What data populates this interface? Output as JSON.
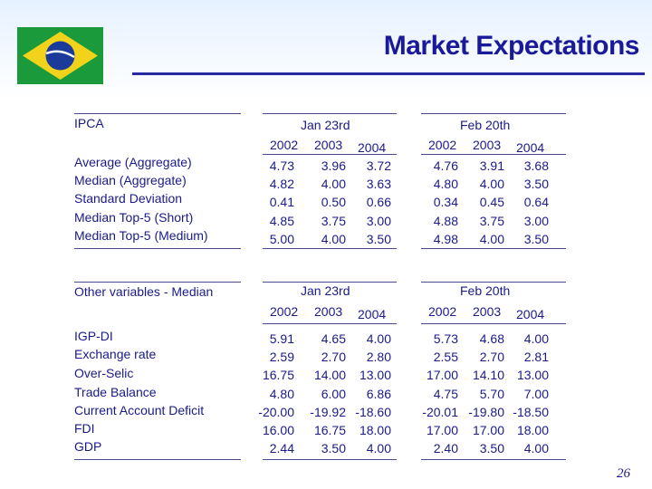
{
  "title": "Market Expectations",
  "page_number": "26",
  "colors": {
    "flag_green": "#1a9a3a",
    "flag_yellow": "#f2d31b",
    "flag_blue": "#1b3b9b",
    "text": "#1a1a8a"
  },
  "ipca": {
    "label": "IPCA",
    "groups": [
      {
        "date": "Jan 23rd",
        "years": [
          "2002",
          "2003",
          "2004"
        ]
      },
      {
        "date": "Feb 20th",
        "years": [
          "2002",
          "2003",
          "2004"
        ]
      }
    ],
    "rows": [
      {
        "label": "Average (Aggregate)",
        "jan": [
          "4.73",
          "3.96",
          "3.72"
        ],
        "feb": [
          "4.76",
          "3.91",
          "3.68"
        ]
      },
      {
        "label": "Median (Aggregate)",
        "jan": [
          "4.82",
          "4.00",
          "3.63"
        ],
        "feb": [
          "4.80",
          "4.00",
          "3.50"
        ]
      },
      {
        "label": "Standard Deviation",
        "jan": [
          "0.41",
          "0.50",
          "0.66"
        ],
        "feb": [
          "0.34",
          "0.45",
          "0.64"
        ]
      },
      {
        "label": "Median Top-5 (Short)",
        "jan": [
          "4.85",
          "3.75",
          "3.00"
        ],
        "feb": [
          "4.88",
          "3.75",
          "3.00"
        ]
      },
      {
        "label": "Median Top-5 (Medium)",
        "jan": [
          "5.00",
          "4.00",
          "3.50"
        ],
        "feb": [
          "4.98",
          "4.00",
          "3.50"
        ]
      }
    ]
  },
  "other": {
    "label": "Other variables - Median",
    "groups": [
      {
        "date": "Jan 23rd",
        "years": [
          "2002",
          "2003",
          "2004"
        ]
      },
      {
        "date": "Feb 20th",
        "years": [
          "2002",
          "2003",
          "2004"
        ]
      }
    ],
    "rows": [
      {
        "label": "IGP-DI",
        "jan": [
          "5.91",
          "4.65",
          "4.00"
        ],
        "feb": [
          "5.73",
          "4.68",
          "4.00"
        ]
      },
      {
        "label": "Exchange rate",
        "jan": [
          "2.59",
          "2.70",
          "2.80"
        ],
        "feb": [
          "2.55",
          "2.70",
          "2.81"
        ]
      },
      {
        "label": "Over-Selic",
        "jan": [
          "16.75",
          "14.00",
          "13.00"
        ],
        "feb": [
          "17.00",
          "14.10",
          "13.00"
        ]
      },
      {
        "label": "Trade Balance",
        "jan": [
          "4.80",
          "6.00",
          "6.86"
        ],
        "feb": [
          "4.75",
          "5.70",
          "7.00"
        ]
      },
      {
        "label": "Current Account Deficit",
        "jan": [
          "-20.00",
          "-19.92",
          "-18.60"
        ],
        "feb": [
          "-20.01",
          "-19.80",
          "-18.50"
        ]
      },
      {
        "label": "FDI",
        "jan": [
          "16.00",
          "16.75",
          "18.00"
        ],
        "feb": [
          "17.00",
          "17.00",
          "18.00"
        ]
      },
      {
        "label": "GDP",
        "jan": [
          "2.44",
          "3.50",
          "4.00"
        ],
        "feb": [
          "2.40",
          "3.50",
          "4.00"
        ]
      }
    ]
  }
}
